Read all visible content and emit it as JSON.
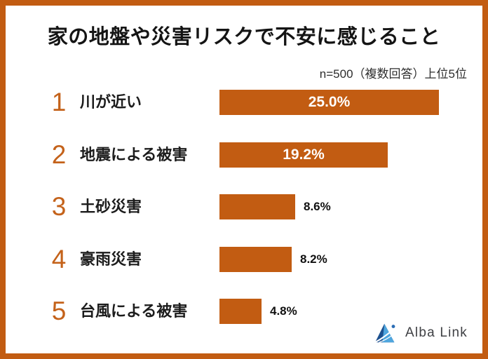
{
  "header": {
    "title": "家の地盤や災害リスクで不安に感じること",
    "note": "n=500（複数回答）上位5位"
  },
  "chart_data": {
    "type": "bar",
    "orientation": "horizontal",
    "title": "家の地盤や災害リスクで不安に感じること",
    "subtitle": "n=500（複数回答）上位5位",
    "categories": [
      "川が近い",
      "地震による被害",
      "土砂災害",
      "豪雨災害",
      "台風による被害"
    ],
    "values": [
      25.0,
      19.2,
      8.6,
      8.2,
      4.8
    ],
    "value_labels": [
      "25.0%",
      "19.2%",
      "8.6%",
      "8.2%",
      "4.8%"
    ],
    "ranks": [
      "1",
      "2",
      "3",
      "4",
      "5"
    ],
    "xlim": [
      0,
      25
    ],
    "grid": false,
    "legend": false,
    "bar_color": "#c25c12"
  },
  "colors": {
    "accent_orange": "#c25c12",
    "rank_orange": "#c4621a",
    "text_dark": "#141414",
    "logo_dark_blue": "#1c508f",
    "logo_light_blue": "#4fa6de"
  },
  "footer": {
    "logo_text": "Alba Link"
  }
}
